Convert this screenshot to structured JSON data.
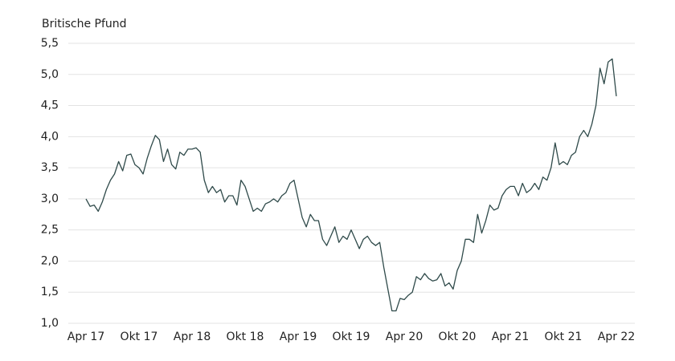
{
  "chart_data": {
    "type": "line",
    "y_axis_label": "Britische Pfund",
    "categories": [
      "Apr 17",
      null,
      null,
      null,
      null,
      null,
      null,
      null,
      null,
      null,
      null,
      null,
      null,
      "Okt 17",
      null,
      null,
      null,
      null,
      null,
      null,
      null,
      null,
      null,
      null,
      null,
      null,
      "Apr 18",
      null,
      null,
      null,
      null,
      null,
      null,
      null,
      null,
      null,
      null,
      null,
      null,
      "Okt 18",
      null,
      null,
      null,
      null,
      null,
      null,
      null,
      null,
      null,
      null,
      null,
      null,
      "Apr 19",
      null,
      null,
      null,
      null,
      null,
      null,
      null,
      null,
      null,
      null,
      null,
      null,
      "Okt 19",
      null,
      null,
      null,
      null,
      null,
      null,
      null,
      null,
      null,
      null,
      null,
      null,
      "Apr 20",
      null,
      null,
      null,
      null,
      null,
      null,
      null,
      null,
      null,
      null,
      null,
      null,
      "Okt 20",
      null,
      null,
      null,
      null,
      null,
      null,
      null,
      null,
      null,
      null,
      null,
      null,
      "Apr 21",
      null,
      null,
      null,
      null,
      null,
      null,
      null,
      null,
      null,
      null,
      null,
      null,
      "Okt 21",
      null,
      null,
      null,
      null,
      null,
      null,
      null,
      null,
      null,
      null,
      null,
      null,
      "Apr 22"
    ],
    "series": [
      {
        "color": "#2f4a4a",
        "values": [
          3.0,
          2.88,
          2.9,
          2.8,
          2.95,
          3.15,
          3.3,
          3.4,
          3.6,
          3.45,
          3.7,
          3.72,
          3.55,
          3.5,
          3.4,
          3.65,
          3.85,
          4.02,
          3.95,
          3.6,
          3.8,
          3.55,
          3.48,
          3.75,
          3.7,
          3.8,
          3.8,
          3.82,
          3.75,
          3.3,
          3.1,
          3.2,
          3.1,
          3.15,
          2.95,
          3.05,
          3.05,
          2.9,
          3.3,
          3.2,
          3.0,
          2.8,
          2.85,
          2.8,
          2.92,
          2.95,
          3.0,
          2.95,
          3.05,
          3.1,
          3.25,
          3.3,
          3.0,
          2.7,
          2.55,
          2.75,
          2.65,
          2.65,
          2.35,
          2.25,
          2.4,
          2.55,
          2.3,
          2.4,
          2.35,
          2.5,
          2.35,
          2.2,
          2.35,
          2.4,
          2.3,
          2.25,
          2.3,
          1.9,
          1.55,
          1.2,
          1.2,
          1.4,
          1.38,
          1.45,
          1.5,
          1.75,
          1.7,
          1.8,
          1.72,
          1.68,
          1.7,
          1.8,
          1.6,
          1.65,
          1.55,
          1.85,
          2.0,
          2.35,
          2.35,
          2.3,
          2.75,
          2.45,
          2.65,
          2.9,
          2.82,
          2.85,
          3.05,
          3.15,
          3.2,
          3.2,
          3.05,
          3.25,
          3.1,
          3.15,
          3.25,
          3.15,
          3.35,
          3.3,
          3.5,
          3.9,
          3.55,
          3.6,
          3.55,
          3.7,
          3.75,
          4.0,
          4.1,
          4.0,
          4.2,
          4.5,
          5.1,
          4.85,
          5.2,
          5.25,
          4.65
        ]
      }
    ],
    "ylim": [
      1.0,
      5.5
    ],
    "yticks": [
      {
        "value": 1.0,
        "label": "1,0"
      },
      {
        "value": 1.5,
        "label": "1,5"
      },
      {
        "value": 2.0,
        "label": "2,0"
      },
      {
        "value": 2.5,
        "label": "2,5"
      },
      {
        "value": 3.0,
        "label": "3,0"
      },
      {
        "value": 3.5,
        "label": "3,5"
      },
      {
        "value": 4.0,
        "label": "4,0"
      },
      {
        "value": 4.5,
        "label": "4,5"
      },
      {
        "value": 5.0,
        "label": "5,0"
      },
      {
        "value": 5.5,
        "label": "5,5"
      }
    ],
    "grid": true
  }
}
